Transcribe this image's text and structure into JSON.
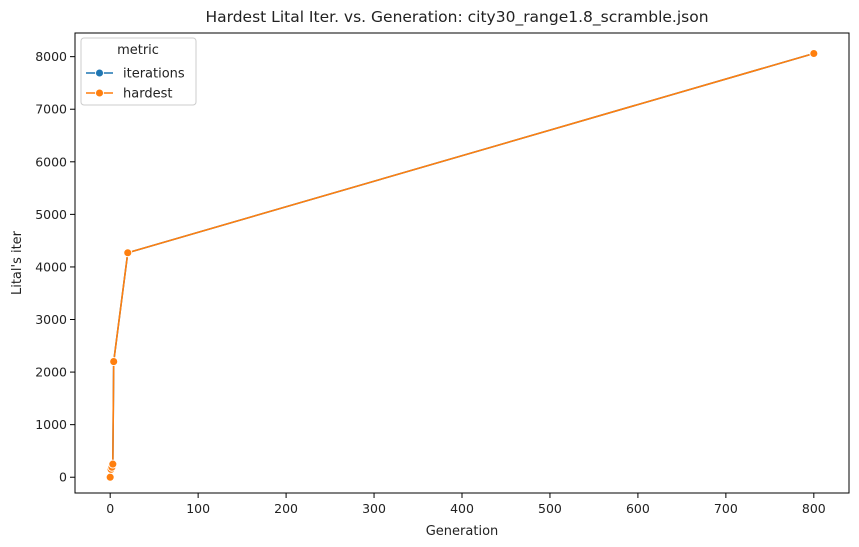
{
  "chart_data": {
    "type": "line",
    "title": "Hardest Lital Iter. vs. Generation: city30_range1.8_scramble.json",
    "xlabel": "Generation",
    "ylabel": "Lital's iter",
    "xlim": [
      -40,
      840
    ],
    "ylim": [
      -300,
      8450
    ],
    "xticks": [
      0,
      100,
      200,
      300,
      400,
      500,
      600,
      700,
      800
    ],
    "yticks": [
      0,
      1000,
      2000,
      3000,
      4000,
      5000,
      6000,
      7000,
      8000
    ],
    "xtick_labels": [
      "0",
      "100",
      "200",
      "300",
      "400",
      "500",
      "600",
      "700",
      "800"
    ],
    "ytick_labels": [
      "0",
      "1000",
      "2000",
      "3000",
      "4000",
      "5000",
      "6000",
      "7000",
      "8000"
    ],
    "grid": false,
    "legend": {
      "title": "metric",
      "placement": "top-left"
    },
    "series": [
      {
        "name": "iterations",
        "color": "#1f77b4",
        "marker": "circle",
        "points": [
          [
            0,
            0
          ],
          [
            1,
            150
          ],
          [
            2,
            190
          ],
          [
            3,
            250
          ],
          [
            4,
            2200
          ],
          [
            20,
            4270
          ],
          [
            800,
            8060
          ]
        ]
      },
      {
        "name": "hardest",
        "color": "#ff7f0e",
        "marker": "circle",
        "points": [
          [
            0,
            0
          ],
          [
            1,
            150
          ],
          [
            2,
            190
          ],
          [
            3,
            250
          ],
          [
            4,
            2200
          ],
          [
            20,
            4270
          ],
          [
            800,
            8060
          ]
        ]
      }
    ]
  }
}
